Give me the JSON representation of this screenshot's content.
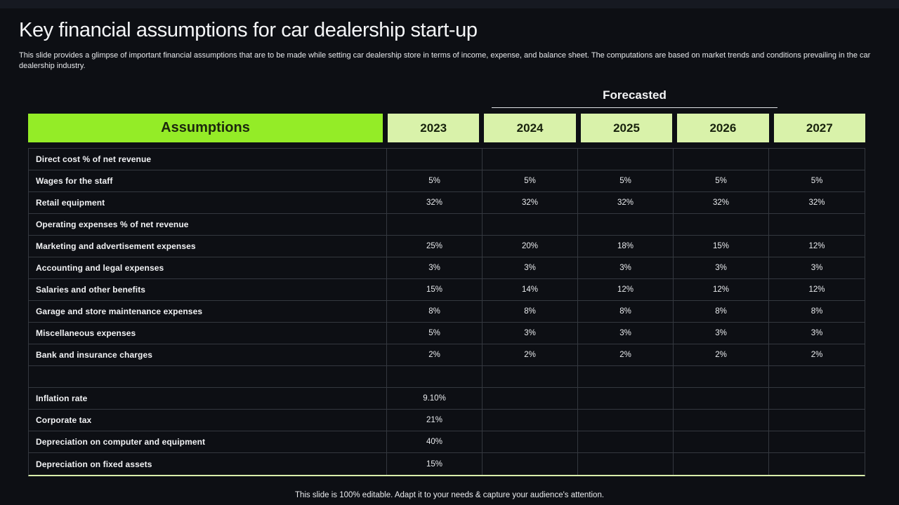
{
  "slide": {
    "title": "Key financial assumptions for car dealership start-up",
    "subtitle": "This slide provides a glimpse of important financial assumptions that are to be made while setting car dealership store in terms of income, expense, and balance sheet. The computations are based on market trends and conditions prevailing in the car dealership industry.",
    "footer": "This slide is 100% editable. Adapt it to your needs & capture your audience's attention."
  },
  "colors": {
    "background": "#0d0f14",
    "accent_green": "#94ec27",
    "light_green": "#d9f2aa",
    "header_text_dark": "#18220d",
    "grid_line": "#34383f",
    "text_white": "#f2f3f5"
  },
  "table": {
    "forecast_label": "Forecasted",
    "assumptions_label": "Assumptions",
    "years": [
      "2023",
      "2024",
      "2025",
      "2026",
      "2027"
    ],
    "rows": [
      {
        "label": "Direct cost % of net revenue",
        "values": [
          "",
          "",
          "",
          "",
          ""
        ]
      },
      {
        "label": "Wages for the staff",
        "values": [
          "5%",
          "5%",
          "5%",
          "5%",
          "5%"
        ]
      },
      {
        "label": "Retail equipment",
        "values": [
          "32%",
          "32%",
          "32%",
          "32%",
          "32%"
        ]
      },
      {
        "label": "Operating expenses % of net revenue",
        "values": [
          "",
          "",
          "",
          "",
          ""
        ]
      },
      {
        "label": "Marketing and advertisement expenses",
        "values": [
          "25%",
          "20%",
          "18%",
          "15%",
          "12%"
        ]
      },
      {
        "label": "Accounting and legal expenses",
        "values": [
          "3%",
          "3%",
          "3%",
          "3%",
          "3%"
        ]
      },
      {
        "label": "Salaries and other benefits",
        "values": [
          "15%",
          "14%",
          "12%",
          "12%",
          "12%"
        ]
      },
      {
        "label": "Garage and store maintenance expenses",
        "values": [
          "8%",
          "8%",
          "8%",
          "8%",
          "8%"
        ]
      },
      {
        "label": "Miscellaneous expenses",
        "values": [
          "5%",
          "3%",
          "3%",
          "3%",
          "3%"
        ]
      },
      {
        "label": "Bank and insurance charges",
        "values": [
          "2%",
          "2%",
          "2%",
          "2%",
          "2%"
        ]
      },
      {
        "label": "",
        "values": [
          "",
          "",
          "",
          "",
          ""
        ]
      },
      {
        "label": "Inflation rate",
        "values": [
          "9.10%",
          "",
          "",
          "",
          ""
        ]
      },
      {
        "label": "Corporate tax",
        "values": [
          "21%",
          "",
          "",
          "",
          ""
        ]
      },
      {
        "label": "Depreciation on computer and equipment",
        "values": [
          "40%",
          "",
          "",
          "",
          ""
        ]
      },
      {
        "label": "Depreciation on fixed assets",
        "values": [
          "15%",
          "",
          "",
          "",
          ""
        ]
      }
    ]
  }
}
